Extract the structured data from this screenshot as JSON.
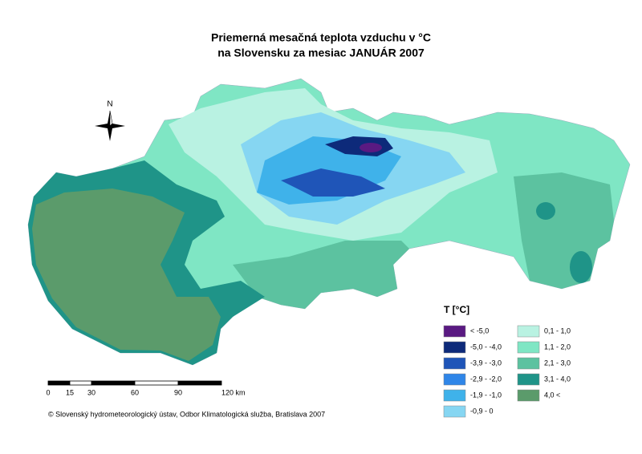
{
  "title": [
    "Priemerná mesačná teplota vzduchu v °C",
    "na Slovensku za mesiac JANUÁR 2007"
  ],
  "compass": "N",
  "legend": {
    "title": "T [°C]",
    "items": [
      {
        "label": "< -5,0",
        "color": "#5a1a82"
      },
      {
        "label": "-5,0 - -4,0",
        "color": "#0d2a7a"
      },
      {
        "label": "-3,9 - -3,0",
        "color": "#1f55b8"
      },
      {
        "label": "-2,9 - -2,0",
        "color": "#2f86e8"
      },
      {
        "label": "-1,9 - -1,0",
        "color": "#3fb2ea"
      },
      {
        "label": "-0,9 - 0",
        "color": "#86d6f2"
      },
      {
        "label": "0,1 - 1,0",
        "color": "#b9f2e2"
      },
      {
        "label": "1,1 - 2,0",
        "color": "#7fe6c4"
      },
      {
        "label": "2,1 - 3,0",
        "color": "#5cc2a0"
      },
      {
        "label": "3,1 - 4,0",
        "color": "#1f9488"
      },
      {
        "label": "4,0 <",
        "color": "#5b9b6b"
      }
    ]
  },
  "scale_bar": {
    "labels": [
      "0",
      "15",
      "30",
      "60",
      "90",
      "120 km"
    ]
  },
  "copyright": "© Slovenský hydrometeorologický ústav, Odbor Klimatologická služba, Bratislava 2007"
}
